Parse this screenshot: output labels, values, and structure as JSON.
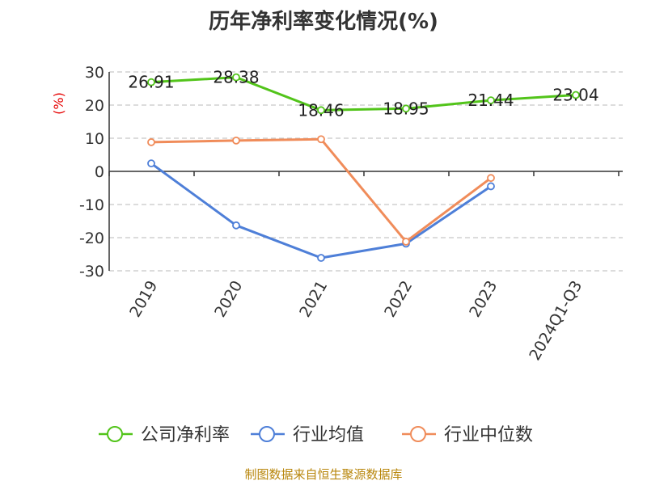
{
  "chart_data": {
    "type": "line",
    "title": "历年净利率变化情况(%)",
    "ylabel": "(%)",
    "categories": [
      "2019",
      "2020",
      "2021",
      "2022",
      "2023",
      "2024Q1-Q3"
    ],
    "y_ticks": [
      "30",
      "20",
      "10",
      "0",
      "-10",
      "-20",
      "-30"
    ],
    "ylim": [
      -30,
      30
    ],
    "grid": true,
    "legend_position": "bottom",
    "series": [
      {
        "name": "公司净利率",
        "color": "#52c41a",
        "values": [
          26.91,
          28.38,
          18.46,
          18.95,
          21.44,
          23.04
        ],
        "labels": [
          "26.91",
          "28.38",
          "18.46",
          "18.95",
          "21.44",
          "23.04"
        ]
      },
      {
        "name": "行业均值",
        "color": "#4e7fd8",
        "values": [
          2.4,
          -16.3,
          -26.1,
          -21.8,
          -4.5,
          null
        ],
        "labels": []
      },
      {
        "name": "行业中位数",
        "color": "#f08c5a",
        "values": [
          8.8,
          9.3,
          9.7,
          -21.2,
          -2.0,
          null
        ],
        "labels": []
      }
    ]
  },
  "footer": {
    "source": "制图数据来自恒生聚源数据库"
  }
}
